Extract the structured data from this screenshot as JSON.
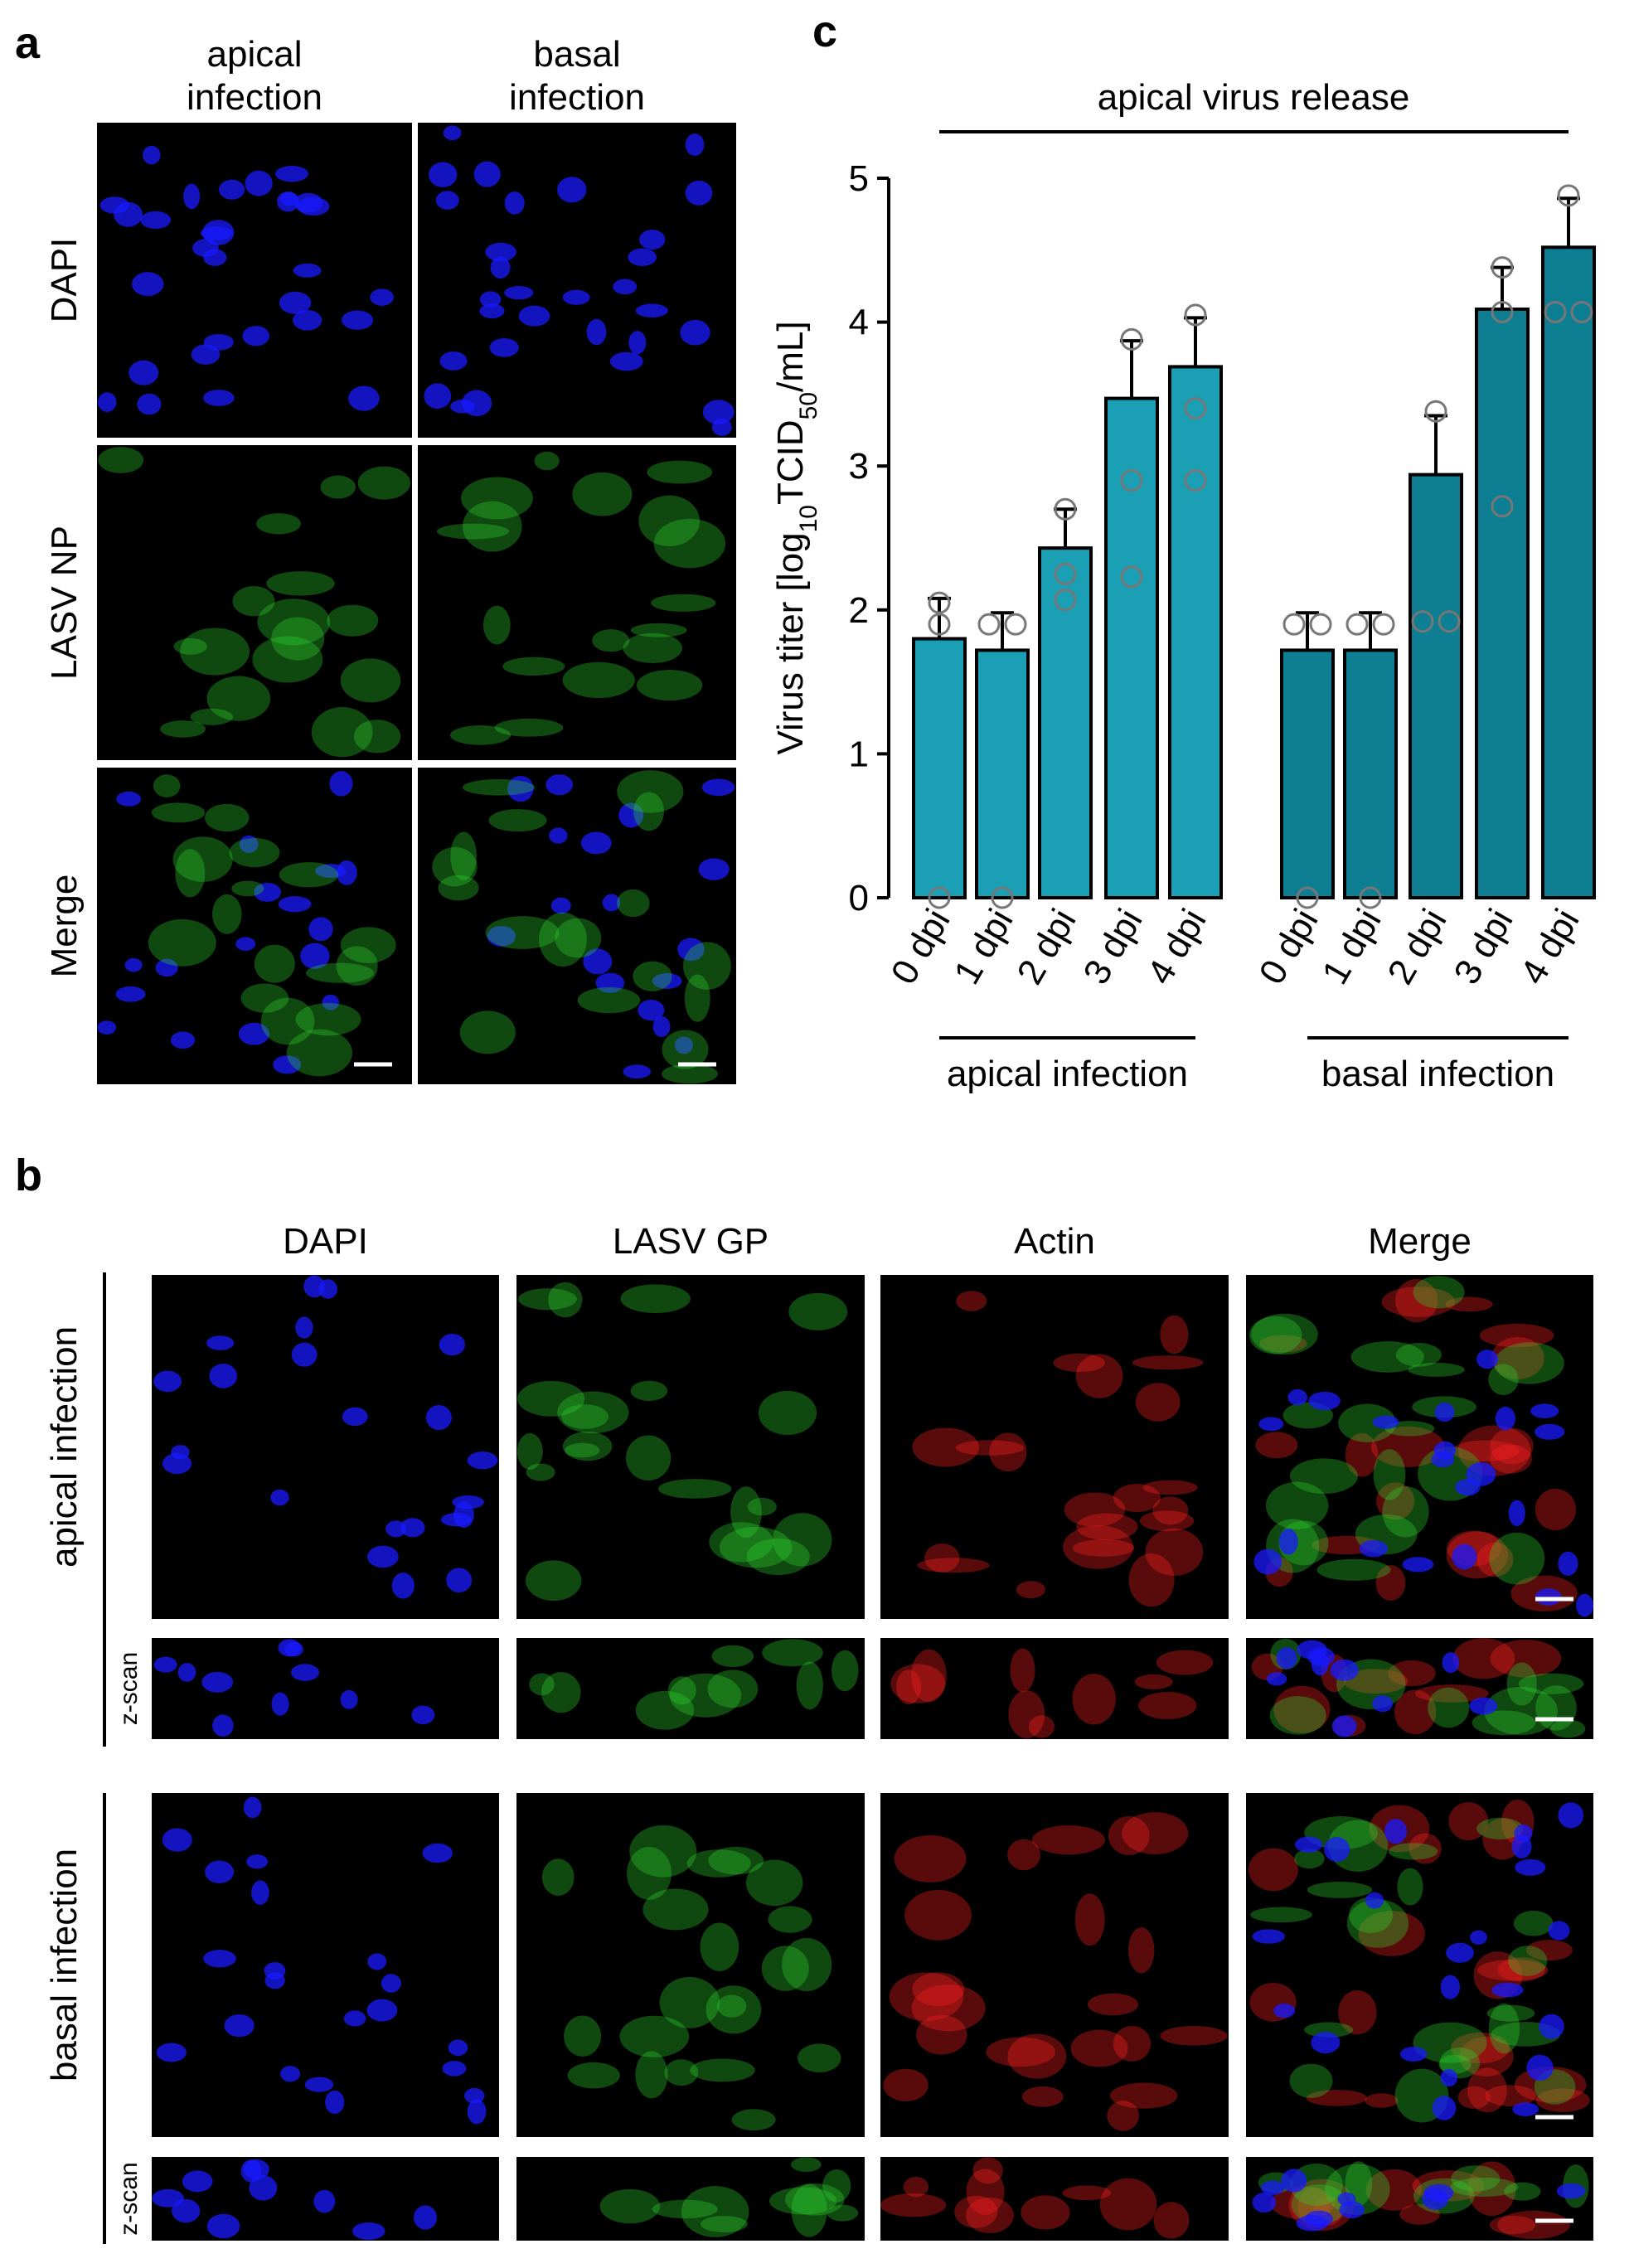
{
  "panel_a": {
    "label": "a",
    "columns": [
      [
        "apical",
        "infection"
      ],
      [
        "basal",
        "infection"
      ]
    ],
    "rows": [
      "DAPI",
      "LASV NP",
      "Merge"
    ]
  },
  "panel_b": {
    "label": "b",
    "columns": [
      "DAPI",
      "LASV GP",
      "Actin",
      "Merge"
    ],
    "rows": [
      "apical infection",
      "basal infection"
    ],
    "subrow": "z-scan"
  },
  "chart_data": {
    "type": "bar",
    "panel_label": "c",
    "title": "apical virus release",
    "y_label_parts": [
      "Virus titer [log",
      "10",
      "TCID",
      "50",
      "/mL]"
    ],
    "ylim": [
      0,
      5
    ],
    "yticks": [
      0,
      1,
      2,
      3,
      4,
      5
    ],
    "groups": [
      {
        "name": "apical infection",
        "color": "#1a9fb5",
        "categories": [
          "0 dpi",
          "1 dpi",
          "2 dpi",
          "3 dpi",
          "4 dpi"
        ],
        "values": [
          1.8,
          1.72,
          2.43,
          3.47,
          3.69
        ],
        "errors": [
          0.28,
          0.26,
          0.27,
          0.4,
          0.34
        ],
        "points": [
          [
            2.05,
            1.9,
            0
          ],
          [
            1.9,
            1.9,
            0
          ],
          [
            2.7,
            2.25,
            2.07
          ],
          [
            3.88,
            2.9,
            2.23
          ],
          [
            4.05,
            3.4,
            2.9
          ]
        ]
      },
      {
        "name": "basal infection",
        "color": "#0e7f92",
        "categories": [
          "0 dpi",
          "1 dpi",
          "2 dpi",
          "3 dpi",
          "4 dpi"
        ],
        "values": [
          1.72,
          1.72,
          2.94,
          4.09,
          4.52
        ],
        "errors": [
          0.26,
          0.26,
          0.41,
          0.29,
          0.34
        ],
        "points": [
          [
            1.9,
            1.9,
            0
          ],
          [
            1.9,
            1.9,
            0
          ],
          [
            3.38,
            1.92,
            1.92
          ],
          [
            4.38,
            4.07,
            2.72
          ],
          [
            4.88,
            4.07,
            4.07
          ]
        ]
      }
    ]
  }
}
